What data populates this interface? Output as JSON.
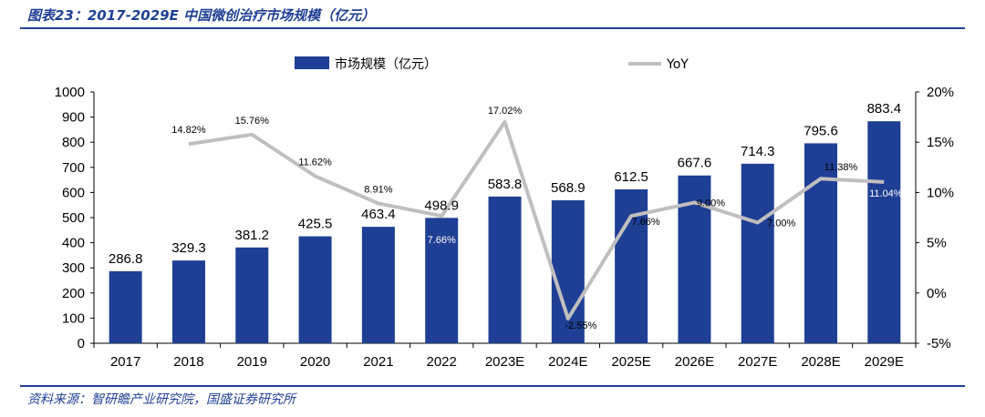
{
  "header": {
    "title": "图表23：2017-2029E 中国微创治疗市场规模（亿元）"
  },
  "footer": {
    "source": "资料来源：智研瞻产业研究院，国盛证券研究所"
  },
  "chart_data": {
    "type": "bar",
    "categories": [
      "2017",
      "2018",
      "2019",
      "2020",
      "2021",
      "2022",
      "2023E",
      "2024E",
      "2025E",
      "2026E",
      "2027E",
      "2028E",
      "2029E"
    ],
    "series": [
      {
        "name": "市场规模（亿元）",
        "type": "bar",
        "axis": "left",
        "color": "#1f3f95",
        "values": [
          286.8,
          329.3,
          381.2,
          425.5,
          463.4,
          498.9,
          583.8,
          568.9,
          612.5,
          667.6,
          714.3,
          795.6,
          883.4
        ],
        "labels": [
          "286.8",
          "329.3",
          "381.2",
          "425.5",
          "463.4",
          "498.9",
          "583.8",
          "568.9",
          "612.5",
          "667.6",
          "714.3",
          "795.6",
          "883.4"
        ]
      },
      {
        "name": "YoY",
        "type": "line",
        "axis": "right",
        "color": "#bfbfbf",
        "values": [
          null,
          14.82,
          15.76,
          11.62,
          8.91,
          7.66,
          17.02,
          -2.55,
          7.66,
          9.0,
          7.0,
          11.38,
          11.04
        ],
        "labels": [
          "",
          "14.82%",
          "15.76%",
          "11.62%",
          "8.91%",
          "7.66%",
          "17.02%",
          "-2.55%",
          "7.66%",
          "9.00%",
          "7.00%",
          "11.38%",
          "11.04%"
        ]
      }
    ],
    "y_left": {
      "min": 0,
      "max": 1000,
      "step": 100,
      "ticks": [
        "0",
        "100",
        "200",
        "300",
        "400",
        "500",
        "600",
        "700",
        "800",
        "900",
        "1000"
      ]
    },
    "y_right": {
      "min": -5,
      "max": 20,
      "step": 5,
      "ticks": [
        "-5%",
        "0%",
        "5%",
        "10%",
        "15%",
        "20%"
      ]
    },
    "legend": {
      "position": "top",
      "items": [
        "市场规模（亿元）",
        "YoY"
      ]
    },
    "grid": false
  }
}
